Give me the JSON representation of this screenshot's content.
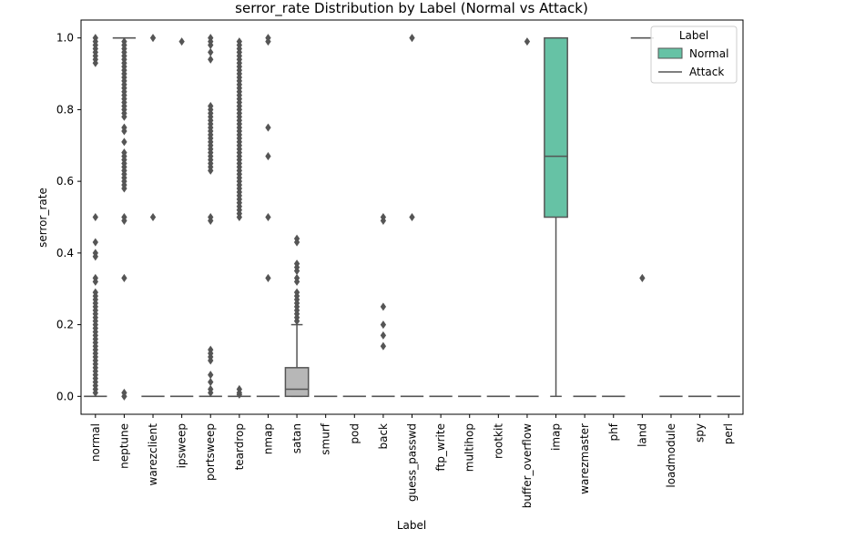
{
  "chart_data": {
    "type": "box",
    "title": "serror_rate Distribution by Label (Normal vs Attack)",
    "xlabel": "Label",
    "ylabel": "serror_rate",
    "ylim": [
      -0.05,
      1.05
    ],
    "yticks": [
      "0.0",
      "0.2",
      "0.4",
      "0.6",
      "0.8",
      "1.0"
    ],
    "ytick_values": [
      0.0,
      0.2,
      0.4,
      0.6,
      0.8,
      1.0
    ],
    "grid": false,
    "legend": {
      "title": "Label",
      "placement": "top-right",
      "entries": [
        {
          "name": "Normal",
          "kind": "box",
          "color": "#66c2a5"
        },
        {
          "name": "Attack",
          "kind": "line",
          "color": "#555555"
        }
      ]
    },
    "colors": {
      "normal_box": "#66c2a5",
      "neutral_box": "#b7b7b7",
      "line": "#555555"
    },
    "categories": [
      {
        "label": "normal",
        "q1": 0,
        "median": 0,
        "q3": 0,
        "whislo": 0,
        "whishi": 0,
        "outliers": [
          1.0,
          0.99,
          0.98,
          0.97,
          0.96,
          0.95,
          0.94,
          0.93,
          0.5,
          0.43,
          0.4,
          0.39,
          0.33,
          0.32,
          0.29,
          0.28,
          0.27,
          0.26,
          0.25,
          0.24,
          0.23,
          0.22,
          0.21,
          0.2,
          0.19,
          0.18,
          0.17,
          0.16,
          0.15,
          0.14,
          0.13,
          0.12,
          0.11,
          0.1,
          0.09,
          0.08,
          0.07,
          0.06,
          0.05,
          0.04,
          0.03,
          0.02,
          0.01
        ]
      },
      {
        "label": "neptune",
        "q1": 1.0,
        "median": 1.0,
        "q3": 1.0,
        "whislo": 1.0,
        "whishi": 1.0,
        "outliers": [
          0.99,
          0.98,
          0.97,
          0.96,
          0.95,
          0.94,
          0.93,
          0.92,
          0.91,
          0.9,
          0.89,
          0.88,
          0.87,
          0.86,
          0.85,
          0.84,
          0.83,
          0.82,
          0.81,
          0.8,
          0.79,
          0.78,
          0.75,
          0.74,
          0.71,
          0.68,
          0.67,
          0.66,
          0.65,
          0.64,
          0.63,
          0.62,
          0.61,
          0.6,
          0.59,
          0.58,
          0.5,
          0.49,
          0.33,
          0.01,
          0.0
        ]
      },
      {
        "label": "warezclient",
        "q1": 0,
        "median": 0,
        "q3": 0,
        "whislo": 0,
        "whishi": 0,
        "outliers": [
          1.0,
          0.5
        ]
      },
      {
        "label": "ipsweep",
        "q1": 0,
        "median": 0,
        "q3": 0,
        "whislo": 0,
        "whishi": 0,
        "outliers": [
          0.99
        ]
      },
      {
        "label": "portsweep",
        "q1": 0,
        "median": 0,
        "q3": 0,
        "whislo": 0,
        "whishi": 0,
        "outliers": [
          1.0,
          0.99,
          0.98,
          0.96,
          0.94,
          0.81,
          0.8,
          0.79,
          0.78,
          0.77,
          0.76,
          0.75,
          0.74,
          0.73,
          0.72,
          0.71,
          0.7,
          0.69,
          0.68,
          0.67,
          0.66,
          0.65,
          0.64,
          0.63,
          0.5,
          0.49,
          0.13,
          0.12,
          0.11,
          0.1,
          0.06,
          0.04,
          0.02,
          0.01
        ]
      },
      {
        "label": "teardrop",
        "q1": 0,
        "median": 0,
        "q3": 0,
        "whislo": 0,
        "whishi": 0,
        "outliers": [
          0.99,
          0.98,
          0.97,
          0.96,
          0.95,
          0.94,
          0.93,
          0.92,
          0.91,
          0.9,
          0.89,
          0.88,
          0.87,
          0.86,
          0.85,
          0.84,
          0.83,
          0.82,
          0.81,
          0.8,
          0.79,
          0.78,
          0.77,
          0.76,
          0.75,
          0.74,
          0.73,
          0.72,
          0.71,
          0.7,
          0.69,
          0.68,
          0.67,
          0.66,
          0.65,
          0.64,
          0.63,
          0.62,
          0.61,
          0.6,
          0.59,
          0.58,
          0.57,
          0.56,
          0.55,
          0.54,
          0.53,
          0.52,
          0.51,
          0.5,
          0.02,
          0.01,
          0.005
        ]
      },
      {
        "label": "nmap",
        "q1": 0,
        "median": 0,
        "q3": 0,
        "whislo": 0,
        "whishi": 0,
        "outliers": [
          1.0,
          0.99,
          0.75,
          0.67,
          0.5,
          0.33
        ]
      },
      {
        "label": "satan",
        "q1": 0.0,
        "median": 0.02,
        "q3": 0.08,
        "whislo": 0.0,
        "whishi": 0.2,
        "box_color": "#b7b7b7",
        "outliers": [
          0.44,
          0.43,
          0.37,
          0.36,
          0.35,
          0.33,
          0.32,
          0.29,
          0.28,
          0.27,
          0.26,
          0.25,
          0.24,
          0.23,
          0.22,
          0.21
        ]
      },
      {
        "label": "smurf",
        "q1": 0,
        "median": 0,
        "q3": 0,
        "whislo": 0,
        "whishi": 0,
        "outliers": []
      },
      {
        "label": "pod",
        "q1": 0,
        "median": 0,
        "q3": 0,
        "whislo": 0,
        "whishi": 0,
        "outliers": []
      },
      {
        "label": "back",
        "q1": 0,
        "median": 0,
        "q3": 0,
        "whislo": 0,
        "whishi": 0,
        "outliers": [
          0.5,
          0.49,
          0.25,
          0.2,
          0.17,
          0.14
        ]
      },
      {
        "label": "guess_passwd",
        "q1": 0,
        "median": 0,
        "q3": 0,
        "whislo": 0,
        "whishi": 0,
        "outliers": [
          1.0,
          0.5
        ]
      },
      {
        "label": "ftp_write",
        "q1": 0,
        "median": 0,
        "q3": 0,
        "whislo": 0,
        "whishi": 0,
        "outliers": []
      },
      {
        "label": "multihop",
        "q1": 0,
        "median": 0,
        "q3": 0,
        "whislo": 0,
        "whishi": 0,
        "outliers": []
      },
      {
        "label": "rootkit",
        "q1": 0,
        "median": 0,
        "q3": 0,
        "whislo": 0,
        "whishi": 0,
        "outliers": []
      },
      {
        "label": "buffer_overflow",
        "q1": 0,
        "median": 0,
        "q3": 0,
        "whislo": 0,
        "whishi": 0,
        "outliers": [
          0.99
        ]
      },
      {
        "label": "imap",
        "q1": 0.5,
        "median": 0.67,
        "q3": 1.0,
        "whislo": 0.0,
        "whishi": 1.0,
        "box_color": "#66c2a5",
        "outliers": []
      },
      {
        "label": "warezmaster",
        "q1": 0,
        "median": 0,
        "q3": 0,
        "whislo": 0,
        "whishi": 0,
        "outliers": []
      },
      {
        "label": "phf",
        "q1": 0,
        "median": 0,
        "q3": 0,
        "whislo": 0,
        "whishi": 0,
        "outliers": []
      },
      {
        "label": "land",
        "q1": 1.0,
        "median": 1.0,
        "q3": 1.0,
        "whislo": 1.0,
        "whishi": 1.0,
        "outliers": [
          0.33
        ]
      },
      {
        "label": "loadmodule",
        "q1": 0,
        "median": 0,
        "q3": 0,
        "whislo": 0,
        "whishi": 0,
        "outliers": []
      },
      {
        "label": "spy",
        "q1": 0,
        "median": 0,
        "q3": 0,
        "whislo": 0,
        "whishi": 0,
        "outliers": []
      },
      {
        "label": "perl",
        "q1": 0,
        "median": 0,
        "q3": 0,
        "whislo": 0,
        "whishi": 0,
        "outliers": []
      }
    ]
  }
}
